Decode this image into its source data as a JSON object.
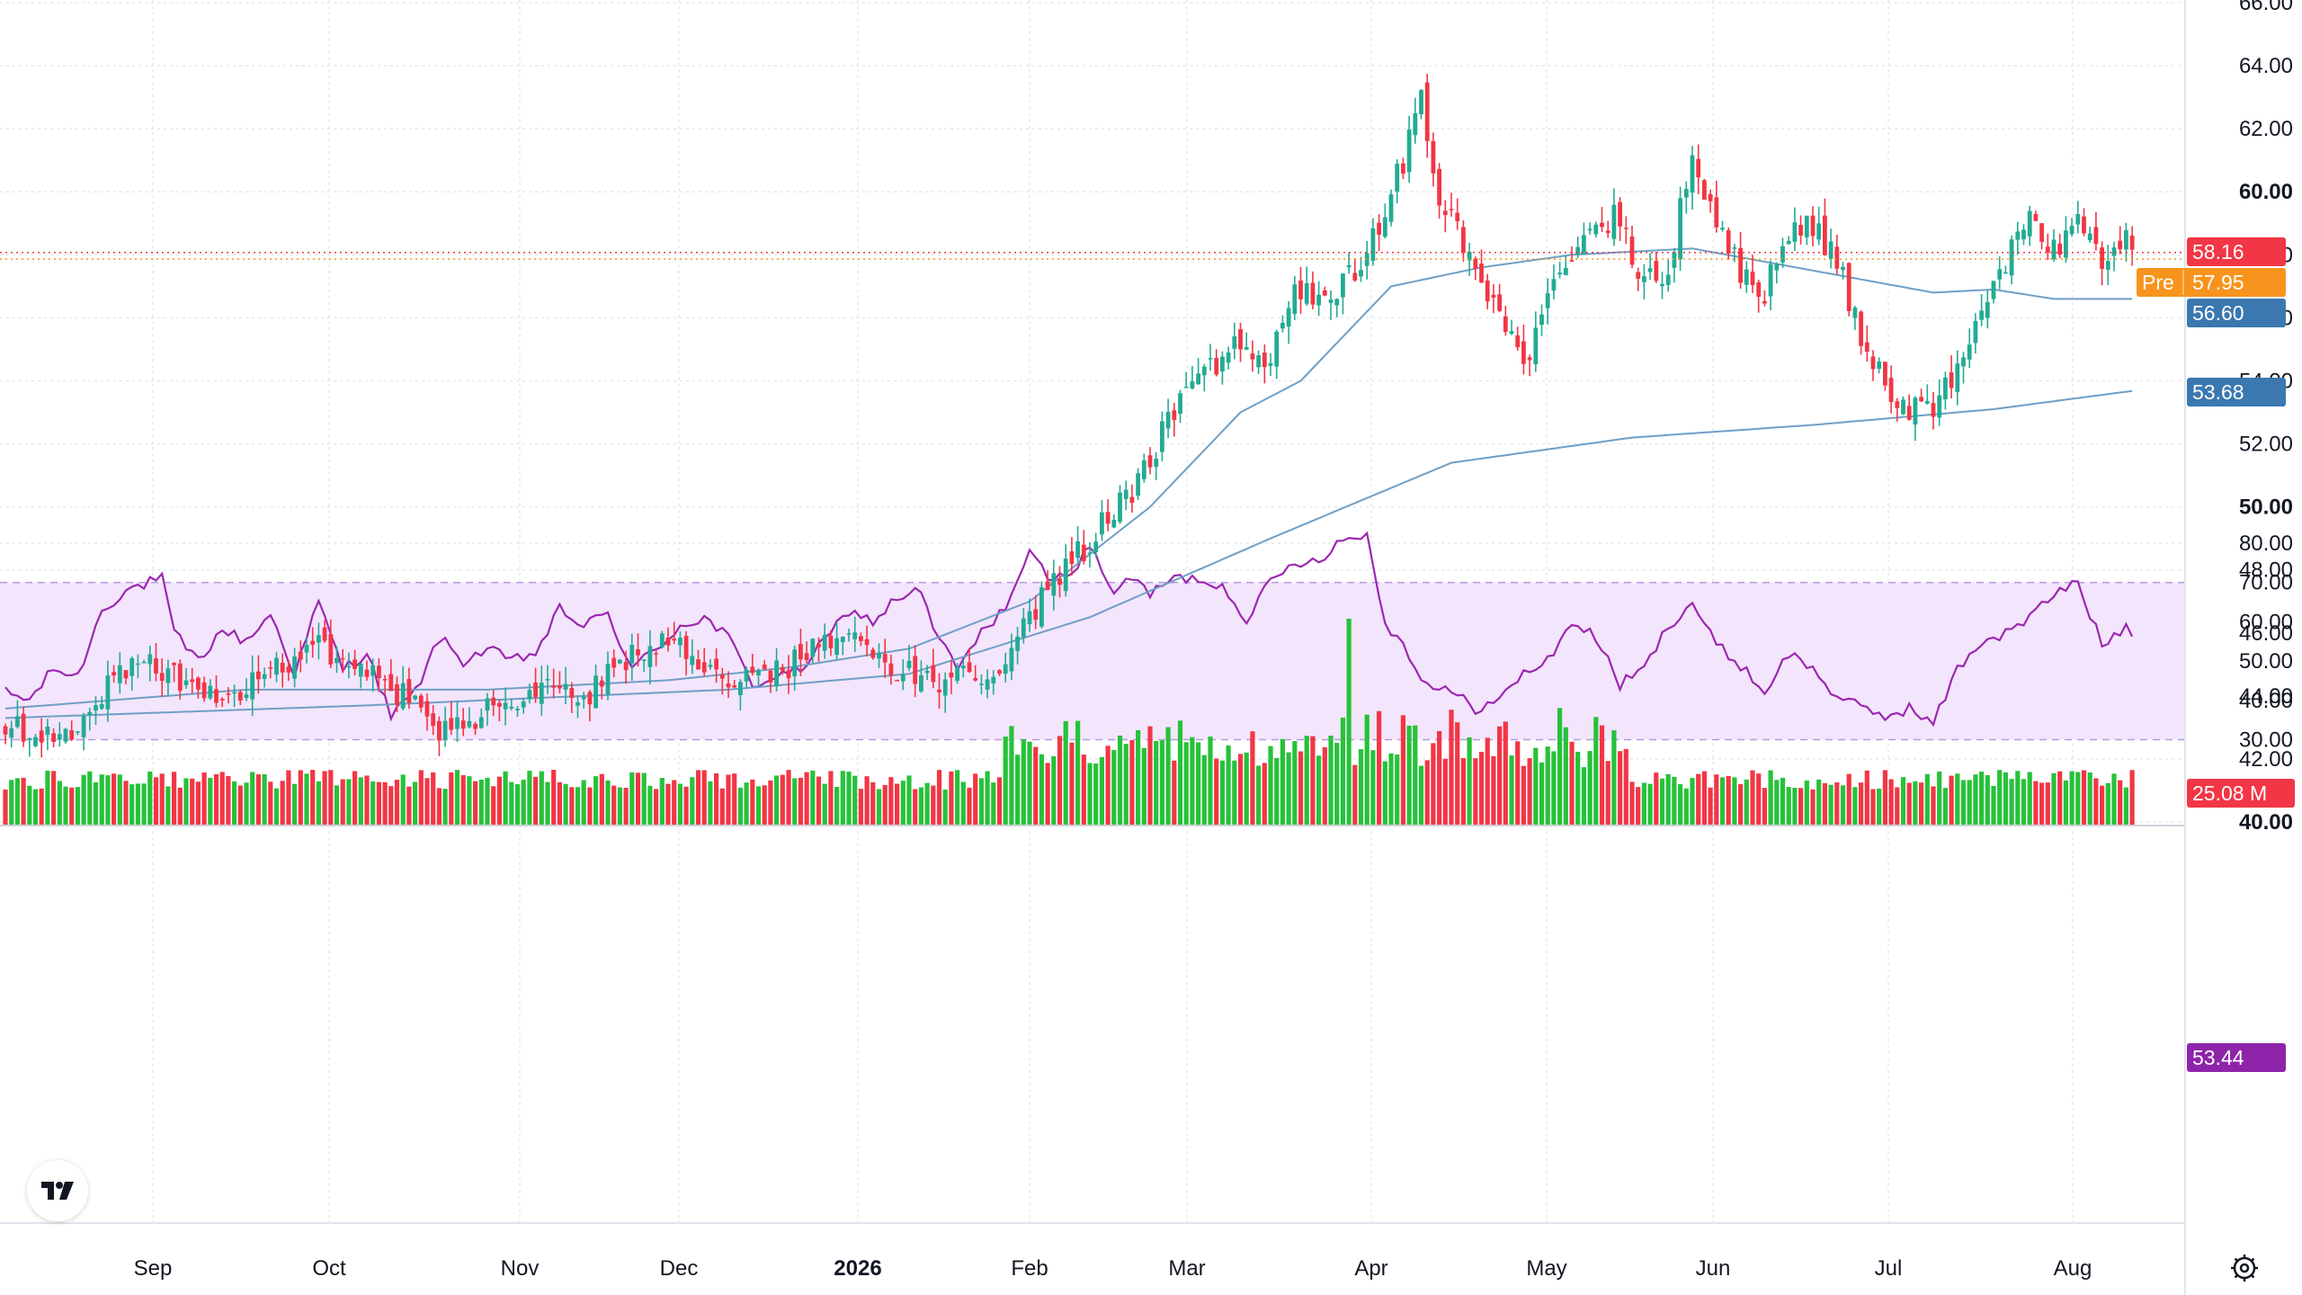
{
  "colors": {
    "up": "#22ab94",
    "up_vol": "#26c23a",
    "down": "#f23645",
    "ma_line": "#6f9fc6",
    "ma_tag": "#3b78b0",
    "pre_tag": "#f7941d",
    "last_tag": "#f23645",
    "rsi_line": "#9c27b0",
    "rsi_band": "#f3e5fc",
    "rsi_tag": "#8e24aa",
    "grid": "#e6e8ec"
  },
  "chart_data": [
    {
      "type": "candlestick",
      "price_ticks": [
        "66.00",
        "64.00",
        "62.00",
        "60.00",
        "58.00",
        "56.00",
        "54.00",
        "52.00",
        "50.00",
        "48.00",
        "46.00",
        "44.00",
        "42.00",
        "40.00"
      ],
      "bold_ticks": [
        "60.00",
        "50.00",
        "40.00"
      ],
      "ylim": [
        40,
        66
      ],
      "last_price_label": "58.16",
      "pre_market_label": "Pre",
      "pre_market_price": "57.95",
      "ma_fast_label": "56.60",
      "ma_slow_label": "53.68",
      "volume_label": "25.08 M",
      "x_labels": [
        "Sep",
        "Oct",
        "Nov",
        "Dec",
        "2026",
        "Feb",
        "Mar",
        "Apr",
        "May",
        "Jun",
        "Jul",
        "Aug"
      ],
      "bold_x_labels": [
        "2026"
      ],
      "anchors": [
        [
          0,
          43.2
        ],
        [
          6,
          42.8
        ],
        [
          12,
          43.1
        ],
        [
          18,
          44.6
        ],
        [
          24,
          45.1
        ],
        [
          30,
          44.3
        ],
        [
          36,
          44.0
        ],
        [
          42,
          44.6
        ],
        [
          48,
          45.2
        ],
        [
          52,
          45.8
        ],
        [
          56,
          44.8
        ],
        [
          62,
          44.5
        ],
        [
          68,
          43.7
        ],
        [
          72,
          42.9
        ],
        [
          78,
          43.4
        ],
        [
          84,
          43.9
        ],
        [
          90,
          44.2
        ],
        [
          96,
          44.0
        ],
        [
          102,
          45.0
        ],
        [
          108,
          45.7
        ],
        [
          114,
          45.3
        ],
        [
          120,
          44.7
        ],
        [
          126,
          44.5
        ],
        [
          132,
          45.2
        ],
        [
          138,
          45.8
        ],
        [
          142,
          45.6
        ],
        [
          148,
          44.9
        ],
        [
          154,
          44.5
        ],
        [
          160,
          44.6
        ],
        [
          166,
          44.8
        ],
        [
          170,
          46.5
        ],
        [
          176,
          48.0
        ],
        [
          182,
          49.4
        ],
        [
          188,
          50.8
        ],
        [
          192,
          52.3
        ],
        [
          198,
          54.2
        ],
        [
          204,
          55.0
        ],
        [
          210,
          54.5
        ],
        [
          214,
          57.0
        ],
        [
          218,
          56.4
        ],
        [
          224,
          57.4
        ],
        [
          228,
          58.8
        ],
        [
          232,
          61.0
        ],
        [
          235,
          63.0
        ],
        [
          238,
          60.0
        ],
        [
          242,
          58.2
        ],
        [
          246,
          56.8
        ],
        [
          250,
          55.5
        ],
        [
          252,
          54.4
        ],
        [
          256,
          56.8
        ],
        [
          260,
          57.5
        ],
        [
          264,
          59.0
        ],
        [
          268,
          59.2
        ],
        [
          272,
          57.0
        ],
        [
          276,
          57.5
        ],
        [
          280,
          61.2
        ],
        [
          284,
          59.0
        ],
        [
          288,
          57.5
        ],
        [
          292,
          56.9
        ],
        [
          296,
          58.5
        ],
        [
          300,
          59.0
        ],
        [
          304,
          57.8
        ],
        [
          308,
          55.4
        ],
        [
          312,
          53.8
        ],
        [
          316,
          53.2
        ],
        [
          320,
          53.0
        ],
        [
          324,
          54.5
        ],
        [
          328,
          56.4
        ],
        [
          332,
          57.8
        ],
        [
          336,
          59.2
        ],
        [
          340,
          58.2
        ],
        [
          344,
          59.0
        ],
        [
          348,
          57.6
        ],
        [
          352,
          58.5
        ],
        [
          353,
          58.16
        ]
      ],
      "ma_fast": [
        [
          0,
          43.6
        ],
        [
          40,
          44.2
        ],
        [
          80,
          44.2
        ],
        [
          110,
          44.5
        ],
        [
          130,
          44.9
        ],
        [
          150,
          45.5
        ],
        [
          170,
          47.0
        ],
        [
          190,
          50.0
        ],
        [
          205,
          53.0
        ],
        [
          215,
          54.0
        ],
        [
          230,
          57.0
        ],
        [
          245,
          57.6
        ],
        [
          260,
          58.0
        ],
        [
          280,
          58.2
        ],
        [
          300,
          57.5
        ],
        [
          320,
          56.8
        ],
        [
          330,
          56.9
        ],
        [
          340,
          56.6
        ],
        [
          353,
          56.6
        ]
      ],
      "ma_slow": [
        [
          0,
          43.3
        ],
        [
          60,
          43.7
        ],
        [
          120,
          44.2
        ],
        [
          150,
          44.7
        ],
        [
          180,
          46.5
        ],
        [
          210,
          49.0
        ],
        [
          240,
          51.4
        ],
        [
          270,
          52.2
        ],
        [
          300,
          52.6
        ],
        [
          330,
          53.1
        ],
        [
          353,
          53.68
        ]
      ],
      "rsi": {
        "ticks": [
          "80.00",
          "70.00",
          "60.00",
          "50.00",
          "40.00",
          "30.00"
        ],
        "ylim": [
          25,
          85
        ],
        "upper": 70,
        "lower": 30,
        "last_label": "53.44",
        "anchors": [
          [
            0,
            42
          ],
          [
            4,
            40
          ],
          [
            8,
            48
          ],
          [
            12,
            46
          ],
          [
            16,
            63
          ],
          [
            20,
            68
          ],
          [
            26,
            71
          ],
          [
            28,
            57
          ],
          [
            32,
            50
          ],
          [
            36,
            58
          ],
          [
            40,
            55
          ],
          [
            44,
            62
          ],
          [
            48,
            47
          ],
          [
            52,
            65
          ],
          [
            56,
            48
          ],
          [
            60,
            52
          ],
          [
            64,
            36
          ],
          [
            68,
            42
          ],
          [
            72,
            56
          ],
          [
            76,
            50
          ],
          [
            80,
            53
          ],
          [
            84,
            50
          ],
          [
            88,
            52
          ],
          [
            92,
            63
          ],
          [
            96,
            59
          ],
          [
            100,
            62
          ],
          [
            104,
            48
          ],
          [
            108,
            53
          ],
          [
            112,
            59
          ],
          [
            116,
            61
          ],
          [
            120,
            56
          ],
          [
            124,
            44
          ],
          [
            128,
            46
          ],
          [
            132,
            48
          ],
          [
            136,
            55
          ],
          [
            140,
            63
          ],
          [
            144,
            60
          ],
          [
            148,
            66
          ],
          [
            152,
            68
          ],
          [
            154,
            58
          ],
          [
            158,
            48
          ],
          [
            162,
            57
          ],
          [
            166,
            64
          ],
          [
            170,
            77
          ],
          [
            174,
            70
          ],
          [
            178,
            75
          ],
          [
            180,
            79
          ],
          [
            184,
            68
          ],
          [
            188,
            71
          ],
          [
            190,
            67
          ],
          [
            194,
            71
          ],
          [
            198,
            71
          ],
          [
            202,
            69
          ],
          [
            206,
            61
          ],
          [
            210,
            70
          ],
          [
            214,
            75
          ],
          [
            218,
            76
          ],
          [
            222,
            81
          ],
          [
            226,
            82
          ],
          [
            229,
            60
          ],
          [
            232,
            54
          ],
          [
            236,
            44
          ],
          [
            240,
            42
          ],
          [
            244,
            38
          ],
          [
            248,
            40
          ],
          [
            252,
            47
          ],
          [
            256,
            50
          ],
          [
            260,
            60
          ],
          [
            264,
            56
          ],
          [
            268,
            44
          ],
          [
            272,
            48
          ],
          [
            276,
            59
          ],
          [
            280,
            65
          ],
          [
            284,
            54
          ],
          [
            288,
            49
          ],
          [
            292,
            42
          ],
          [
            296,
            52
          ],
          [
            300,
            48
          ],
          [
            304,
            41
          ],
          [
            308,
            38
          ],
          [
            312,
            36
          ],
          [
            316,
            38
          ],
          [
            320,
            34
          ],
          [
            324,
            48
          ],
          [
            328,
            55
          ],
          [
            332,
            57
          ],
          [
            336,
            61
          ],
          [
            340,
            67
          ],
          [
            344,
            70
          ],
          [
            348,
            54
          ],
          [
            352,
            59
          ],
          [
            354,
            53.44
          ]
        ]
      }
    }
  ]
}
